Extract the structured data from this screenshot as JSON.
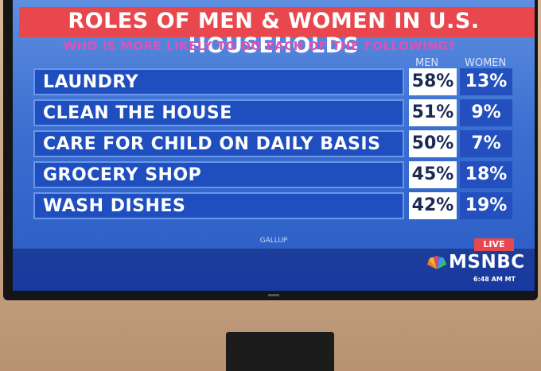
{
  "screen": {
    "title": "ROLES OF MEN & WOMEN IN U.S. HOUSEHOLDS",
    "subtitle": "WHO IS MORE LIKELY TO DO EACH OF THE FOLLOWING?",
    "column_headers": {
      "men": "MEN",
      "women": "WOMEN"
    },
    "rows": [
      {
        "label": "LAUNDRY",
        "men": "58%",
        "women": "13%"
      },
      {
        "label": "CLEAN THE HOUSE",
        "men": "51%",
        "women": "9%"
      },
      {
        "label": "CARE FOR CHILD ON DAILY BASIS",
        "men": "50%",
        "women": "7%"
      },
      {
        "label": "GROCERY SHOP",
        "men": "45%",
        "women": "18%"
      },
      {
        "label": "WASH DISHES",
        "men": "42%",
        "women": "19%"
      }
    ],
    "source": "GALLUP",
    "live_badge": "LIVE",
    "network_logo": "MSNBC",
    "time": "6:48 AM MT"
  },
  "colors": {
    "title_bar": "#e8474d",
    "subtitle": "#e050b8",
    "row_blue": "#1f4fbf",
    "screen_blue": "#3a6fd0"
  },
  "icons": [
    "peacock-logo-icon"
  ]
}
